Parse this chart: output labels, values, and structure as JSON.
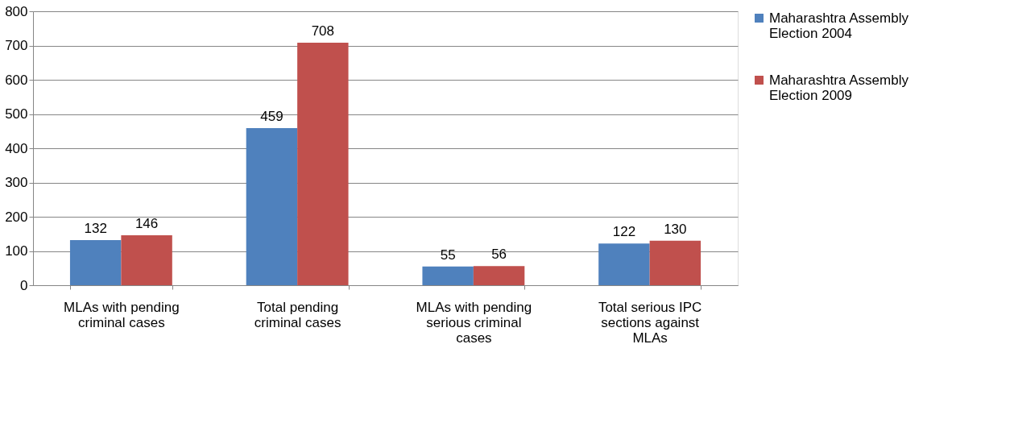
{
  "chart_data": {
    "type": "bar",
    "categories": [
      "MLAs with pending criminal cases",
      "Total pending criminal cases",
      "MLAs with pending serious criminal cases",
      "Total serious IPC sections against MLAs"
    ],
    "series": [
      {
        "name": "Maharashtra Assembly Election 2004",
        "color": "#4f81bd",
        "values": [
          132,
          459,
          55,
          122
        ]
      },
      {
        "name": "Maharashtra Assembly Election 2009",
        "color": "#c0504d",
        "values": [
          146,
          708,
          56,
          130
        ]
      }
    ],
    "ylim": [
      0,
      800
    ],
    "yticks": [
      0,
      100,
      200,
      300,
      400,
      500,
      600,
      700,
      800
    ],
    "grid": "y",
    "legend": "right",
    "data_labels": true
  }
}
